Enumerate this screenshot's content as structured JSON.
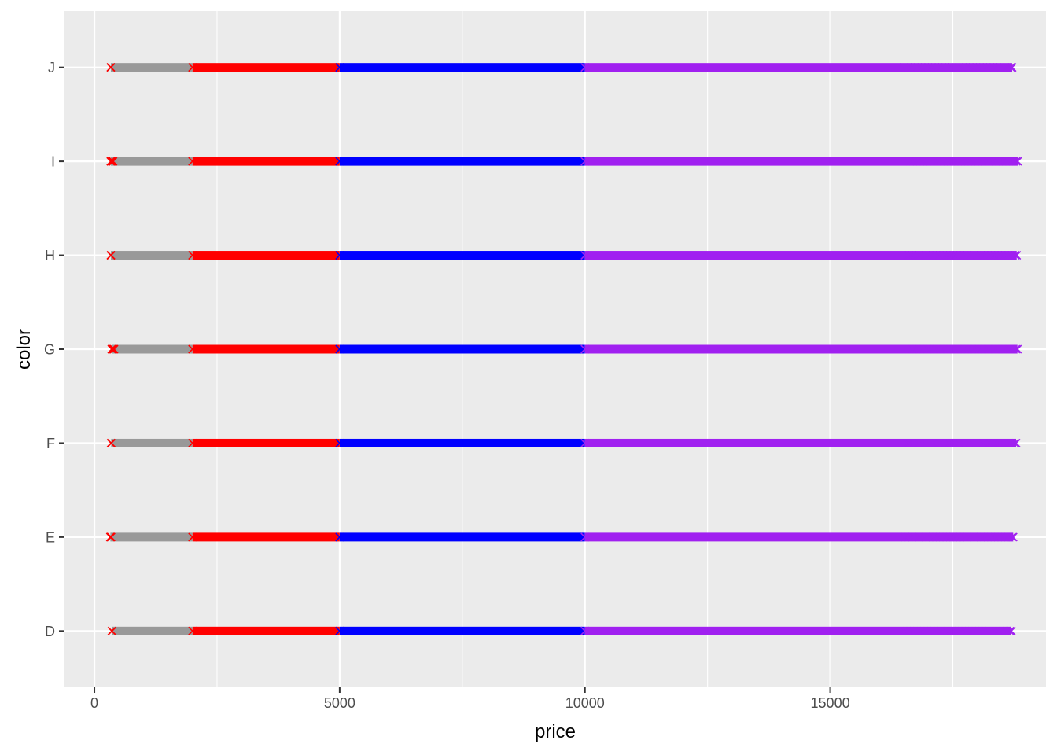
{
  "chart_data": {
    "type": "scatter",
    "xlabel": "price",
    "ylabel": "color",
    "categories": [
      "D",
      "E",
      "F",
      "G",
      "H",
      "I",
      "J"
    ],
    "xlim": [
      -610,
      19400
    ],
    "x_ticks": [
      0,
      5000,
      10000,
      15000
    ],
    "x_minor_ticks": [
      2500,
      7500,
      12500,
      17500
    ],
    "grid": true,
    "legend": "none",
    "panel_color": "#ebebeb",
    "grid_color": "#ffffff",
    "series": [
      {
        "color": "#999999",
        "marker": "x",
        "price_range": [
          326,
          1999
        ],
        "rows": {
          "D": [
            357,
            1999
          ],
          "E": [
            326,
            1999
          ],
          "F": [
            342,
            1999
          ],
          "G": [
            354,
            1999
          ],
          "H": [
            337,
            1999
          ],
          "I": [
            334,
            1999
          ],
          "J": [
            335,
            1999
          ]
        }
      },
      {
        "color": "#ff0000",
        "marker": "x",
        "price_range": [
          2000,
          4999
        ],
        "rows": {
          "D": [
            2000,
            4999
          ],
          "E": [
            2000,
            4999
          ],
          "F": [
            2000,
            4999
          ],
          "G": [
            2000,
            4999
          ],
          "H": [
            2000,
            4999
          ],
          "I": [
            2000,
            4999
          ],
          "J": [
            2000,
            4999
          ]
        },
        "low_points": {
          "D": [
            357
          ],
          "E": [
            326,
            340
          ],
          "F": [
            342
          ],
          "G": [
            354,
            380,
            400
          ],
          "H": [
            337
          ],
          "I": [
            334,
            360,
            380
          ],
          "J": [
            335
          ]
        }
      },
      {
        "color": "#0000ff",
        "marker": "x",
        "price_range": [
          5000,
          9999
        ],
        "rows": {
          "D": [
            5000,
            9999
          ],
          "E": [
            5000,
            9999
          ],
          "F": [
            5000,
            9999
          ],
          "G": [
            5000,
            9999
          ],
          "H": [
            5000,
            9999
          ],
          "I": [
            5000,
            9999
          ],
          "J": [
            5000,
            9999
          ]
        }
      },
      {
        "color": "#a020f0",
        "marker": "x",
        "price_range": [
          10000,
          18823
        ],
        "rows": {
          "D": [
            10000,
            18693
          ],
          "E": [
            10000,
            18731
          ],
          "F": [
            10000,
            18791
          ],
          "G": [
            10000,
            18818
          ],
          "H": [
            10000,
            18803
          ],
          "I": [
            10000,
            18823
          ],
          "J": [
            10000,
            18710
          ]
        }
      }
    ]
  }
}
